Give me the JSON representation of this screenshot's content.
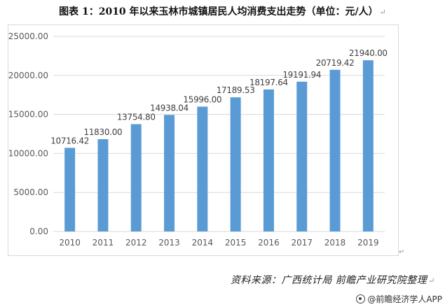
{
  "title": "图表 1：2010 年以来玉林市城镇居民人均消费支出走势（单位：元/人）",
  "paragraph_mark": "↵",
  "source": "资料来源：广西统计局 前瞻产业研究院整理",
  "watermark": "@前瞻经济学人APP",
  "colors": {
    "bar": "#5b9bd5",
    "grid": "#d9d9d9",
    "axis_text": "#595959",
    "label_text": "#404040"
  },
  "chart_data": {
    "type": "bar",
    "categories": [
      "2010",
      "2011",
      "2012",
      "2013",
      "2014",
      "2015",
      "2016",
      "2017",
      "2018",
      "2019"
    ],
    "values": [
      10716.42,
      11830.0,
      13754.8,
      14938.04,
      15996.0,
      17189.53,
      18197.64,
      19191.94,
      20719.42,
      21940.0
    ],
    "value_labels": [
      "10716.42",
      "11830.00",
      "13754.80",
      "14938.04",
      "15996.00",
      "17189.53",
      "18197.64",
      "19191.94",
      "20719.42",
      "21940.00"
    ],
    "yticks": [
      0,
      5000,
      10000,
      15000,
      20000,
      25000
    ],
    "ytick_labels": [
      "0.00",
      "5000.00",
      "10000.00",
      "15000.00",
      "20000.00",
      "25000.00"
    ],
    "ylim": [
      0,
      25000
    ],
    "title": "",
    "xlabel": "",
    "ylabel": "",
    "grid": true,
    "legend": "none"
  }
}
